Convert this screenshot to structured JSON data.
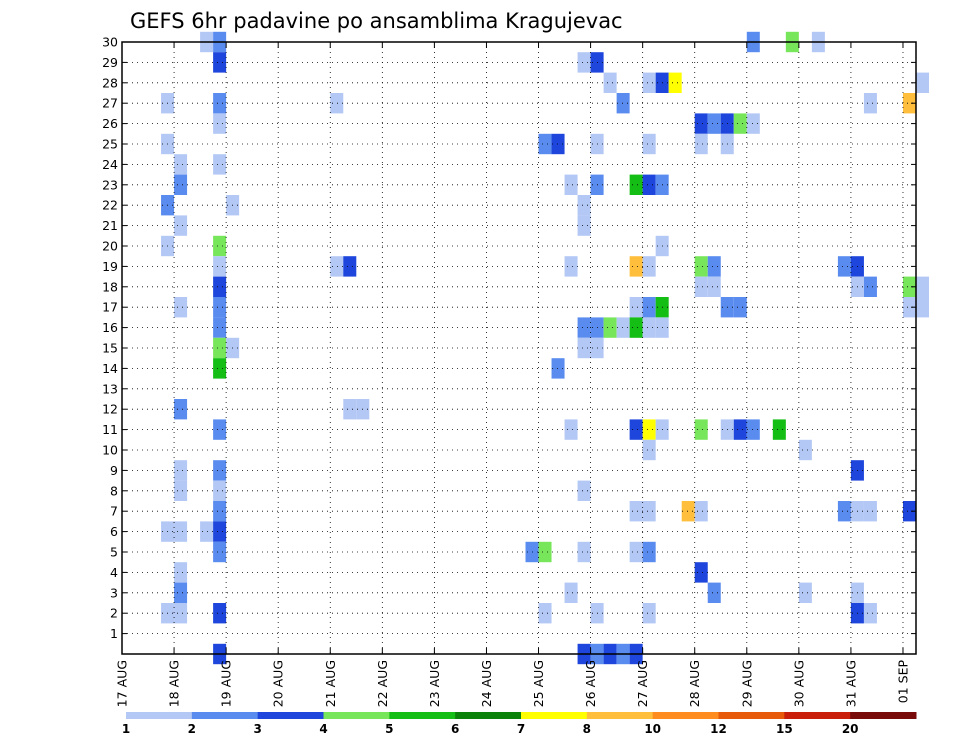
{
  "chart_data": {
    "type": "heatmap",
    "title": "GEFS 6hr padavine po ansamblima Kragujevac",
    "x_tick_labels": [
      "17 AUG",
      "18 AUG",
      "19 AUG",
      "20 AUG",
      "21 AUG",
      "22 AUG",
      "23 AUG",
      "24 AUG",
      "25 AUG",
      "26 AUG",
      "27 AUG",
      "28 AUG",
      "29 AUG",
      "30 AUG",
      "31 AUG",
      "01 SEP"
    ],
    "x_range": [
      0,
      61
    ],
    "y_tick_labels": [
      "1",
      "2",
      "3",
      "4",
      "5",
      "6",
      "7",
      "8",
      "9",
      "10",
      "11",
      "12",
      "13",
      "14",
      "15",
      "16",
      "17",
      "18",
      "19",
      "20",
      "21",
      "22",
      "23",
      "24",
      "25",
      "26",
      "27",
      "28",
      "29",
      "30"
    ],
    "y_range": [
      0,
      30
    ],
    "grid": true,
    "colorbar": {
      "labels": [
        "1",
        "2",
        "3",
        "4",
        "5",
        "6",
        "7",
        "8",
        "10",
        "12",
        "15",
        "20"
      ],
      "colors": [
        "#b4c8f5",
        "#5a8cf0",
        "#1e46dc",
        "#78e65a",
        "#14be14",
        "#0a820a",
        "#ffff00",
        "#ffbe3c",
        "#ff8c1e",
        "#e65a0a",
        "#c81e0a",
        "#780a0a"
      ]
    },
    "levels_note": "cells: [time_step, member, level]; level 1 = 1-2, 2 = 2-3, 3 = 3-4, 4 = 4-5, 5 = 5-6, 6 = 6-7, 7 = 7-8, 8 = 8-10",
    "cells": [
      [
        6,
        30,
        1
      ],
      [
        7,
        30,
        2
      ],
      [
        48,
        30,
        2
      ],
      [
        51,
        30,
        4
      ],
      [
        53,
        30,
        1
      ],
      [
        7,
        29,
        3
      ],
      [
        35,
        29,
        1
      ],
      [
        36,
        29,
        3
      ],
      [
        37,
        28,
        1
      ],
      [
        40,
        28,
        1
      ],
      [
        41,
        28,
        3
      ],
      [
        42,
        28,
        7
      ],
      [
        61,
        28,
        1
      ],
      [
        3,
        27,
        1
      ],
      [
        7,
        27,
        2
      ],
      [
        16,
        27,
        1
      ],
      [
        38,
        27,
        2
      ],
      [
        57,
        27,
        1
      ],
      [
        60,
        27,
        8
      ],
      [
        7,
        26,
        1
      ],
      [
        44,
        26,
        3
      ],
      [
        45,
        26,
        2
      ],
      [
        46,
        26,
        3
      ],
      [
        47,
        26,
        4
      ],
      [
        48,
        26,
        1
      ],
      [
        3,
        25,
        1
      ],
      [
        32,
        25,
        2
      ],
      [
        33,
        25,
        3
      ],
      [
        36,
        25,
        1
      ],
      [
        40,
        25,
        1
      ],
      [
        44,
        25,
        1
      ],
      [
        46,
        25,
        1
      ],
      [
        4,
        24,
        1
      ],
      [
        7,
        24,
        1
      ],
      [
        4,
        23,
        2
      ],
      [
        34,
        23,
        1
      ],
      [
        36,
        23,
        2
      ],
      [
        39,
        23,
        5
      ],
      [
        40,
        23,
        3
      ],
      [
        41,
        23,
        2
      ],
      [
        3,
        22,
        2
      ],
      [
        8,
        22,
        1
      ],
      [
        35,
        22,
        1
      ],
      [
        4,
        21,
        1
      ],
      [
        35,
        21,
        1
      ],
      [
        3,
        20,
        1
      ],
      [
        7,
        20,
        4
      ],
      [
        41,
        20,
        1
      ],
      [
        7,
        19,
        1
      ],
      [
        16,
        19,
        1
      ],
      [
        17,
        19,
        3
      ],
      [
        34,
        19,
        1
      ],
      [
        39,
        19,
        8
      ],
      [
        40,
        19,
        1
      ],
      [
        44,
        19,
        4
      ],
      [
        45,
        19,
        2
      ],
      [
        55,
        19,
        2
      ],
      [
        56,
        19,
        3
      ],
      [
        7,
        18,
        3
      ],
      [
        44,
        18,
        1
      ],
      [
        45,
        18,
        1
      ],
      [
        56,
        18,
        1
      ],
      [
        57,
        18,
        2
      ],
      [
        60,
        18,
        4
      ],
      [
        61,
        18,
        1
      ],
      [
        4,
        17,
        1
      ],
      [
        7,
        17,
        2
      ],
      [
        39,
        17,
        1
      ],
      [
        40,
        17,
        2
      ],
      [
        41,
        17,
        5
      ],
      [
        46,
        17,
        2
      ],
      [
        47,
        17,
        2
      ],
      [
        60,
        17,
        1
      ],
      [
        61,
        17,
        1
      ],
      [
        7,
        16,
        2
      ],
      [
        35,
        16,
        2
      ],
      [
        36,
        16,
        2
      ],
      [
        37,
        16,
        4
      ],
      [
        38,
        16,
        1
      ],
      [
        39,
        16,
        5
      ],
      [
        40,
        16,
        1
      ],
      [
        41,
        16,
        1
      ],
      [
        7,
        15,
        4
      ],
      [
        8,
        15,
        1
      ],
      [
        35,
        15,
        1
      ],
      [
        36,
        15,
        1
      ],
      [
        7,
        14,
        5
      ],
      [
        33,
        14,
        2
      ],
      [
        4,
        12,
        2
      ],
      [
        17,
        12,
        1
      ],
      [
        18,
        12,
        1
      ],
      [
        7,
        11,
        2
      ],
      [
        34,
        11,
        1
      ],
      [
        39,
        11,
        3
      ],
      [
        40,
        11,
        7
      ],
      [
        41,
        11,
        1
      ],
      [
        44,
        11,
        4
      ],
      [
        46,
        11,
        1
      ],
      [
        47,
        11,
        3
      ],
      [
        48,
        11,
        2
      ],
      [
        50,
        11,
        5
      ],
      [
        40,
        10,
        1
      ],
      [
        52,
        10,
        1
      ],
      [
        4,
        9,
        1
      ],
      [
        7,
        9,
        2
      ],
      [
        56,
        9,
        3
      ],
      [
        4,
        8,
        1
      ],
      [
        7,
        8,
        1
      ],
      [
        35,
        8,
        1
      ],
      [
        7,
        7,
        2
      ],
      [
        39,
        7,
        1
      ],
      [
        40,
        7,
        1
      ],
      [
        43,
        7,
        8
      ],
      [
        44,
        7,
        1
      ],
      [
        55,
        7,
        2
      ],
      [
        56,
        7,
        1
      ],
      [
        57,
        7,
        1
      ],
      [
        60,
        7,
        3
      ],
      [
        3,
        6,
        1
      ],
      [
        4,
        6,
        1
      ],
      [
        6,
        6,
        1
      ],
      [
        7,
        6,
        3
      ],
      [
        7,
        5,
        2
      ],
      [
        31,
        5,
        2
      ],
      [
        32,
        5,
        4
      ],
      [
        35,
        5,
        1
      ],
      [
        39,
        5,
        1
      ],
      [
        40,
        5,
        2
      ],
      [
        4,
        4,
        1
      ],
      [
        44,
        4,
        3
      ],
      [
        4,
        3,
        2
      ],
      [
        34,
        3,
        1
      ],
      [
        45,
        3,
        2
      ],
      [
        52,
        3,
        1
      ],
      [
        56,
        3,
        1
      ],
      [
        3,
        2,
        1
      ],
      [
        4,
        2,
        1
      ],
      [
        7,
        2,
        3
      ],
      [
        32,
        2,
        1
      ],
      [
        36,
        2,
        1
      ],
      [
        40,
        2,
        1
      ],
      [
        56,
        2,
        3
      ],
      [
        57,
        2,
        1
      ],
      [
        7,
        0,
        3
      ],
      [
        35,
        0,
        3
      ],
      [
        36,
        0,
        2
      ],
      [
        37,
        0,
        3
      ],
      [
        38,
        0,
        2
      ],
      [
        39,
        0,
        3
      ]
    ]
  }
}
